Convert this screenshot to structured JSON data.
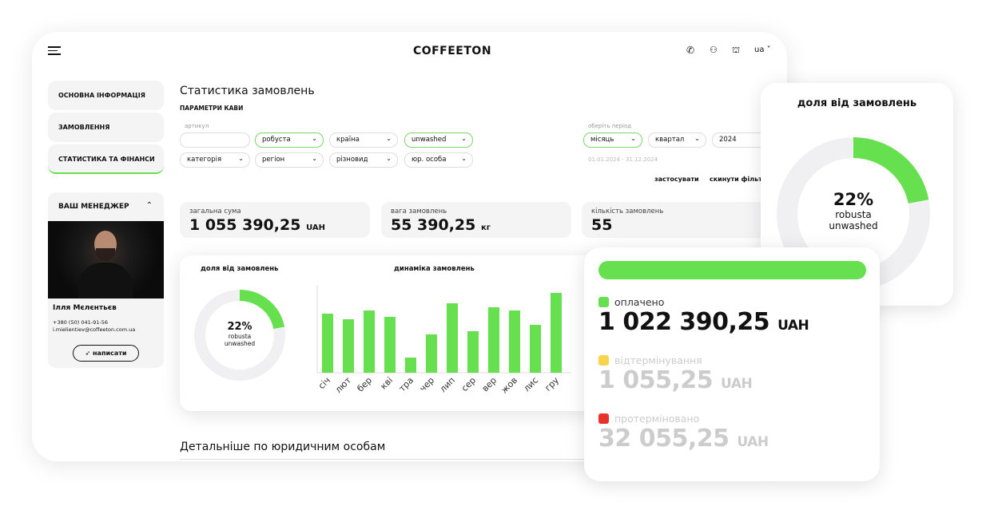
{
  "header": {
    "logo": "COFFEETON",
    "lang": "ua"
  },
  "sidebar": {
    "items": [
      {
        "label": "ОСНОВНА ІНФОРМАЦІЯ"
      },
      {
        "label": "ЗАМОВЛЕННЯ"
      },
      {
        "label": "СТАТИСТИКА ТА ФІНАНСИ"
      }
    ],
    "manager": {
      "title": "ВАШ МЕНЕДЖЕР",
      "name": "Ілля Мєлєнтьєв",
      "phone": "+380 (50) 041-91-56",
      "email": "i.mielientiev@coffeeton.com.ua",
      "button": "написати"
    }
  },
  "main": {
    "title": "Статистика замовлень",
    "subtitle": "ПАРАМЕТРИ КАВИ",
    "article_label": "артикул",
    "article_value": "",
    "filters_row1": [
      "робуста",
      "країна",
      "unwashed"
    ],
    "filters_row2": [
      "категорія",
      "регіон",
      "різновид",
      "юр. особа"
    ],
    "period_label": "оберіть період",
    "period": [
      "місяць",
      "квартал",
      "2024"
    ],
    "date_range": "01.01.2024 - 31.12.2024",
    "apply": "застосувати",
    "reset": "скинути фільтри",
    "stats": [
      {
        "title": "загальна сума",
        "value": "1 055 390,25",
        "unit": "UAH"
      },
      {
        "title": "вага замовлень",
        "value": "55 390,25",
        "unit": "кг"
      },
      {
        "title": "кількість замовлень",
        "value": "55",
        "unit": ""
      }
    ],
    "share": {
      "title": "доля від замовлень",
      "percent": "22%",
      "line1": "robusta",
      "line2": "unwashed",
      "fraction": 0.22
    },
    "bottom_heading": "Детальніше по юридичним особам"
  },
  "chart_data": {
    "type": "bar",
    "title": "динаміка замовлень",
    "categories": [
      "січ",
      "лют",
      "бер",
      "кві",
      "тра",
      "чер",
      "лип",
      "сер",
      "вер",
      "жов",
      "лис",
      "гру"
    ],
    "values": [
      74,
      67,
      78,
      70,
      19,
      48,
      87,
      52,
      82,
      78,
      60,
      100
    ],
    "color": "#66e04e"
  },
  "payments": {
    "progress": 1.0,
    "items": [
      {
        "label": "оплачено",
        "value": "1 022 390,25",
        "unit": "UAH",
        "color": "#66e04e"
      },
      {
        "label": "відтермінування",
        "value": "1 055,25",
        "unit": "UAH",
        "color": "#f7d44c"
      },
      {
        "label": "протерміновано",
        "value": "32 055,25",
        "unit": "UAH",
        "color": "#e8312a"
      }
    ]
  },
  "colors": {
    "accent": "#66e04e"
  }
}
